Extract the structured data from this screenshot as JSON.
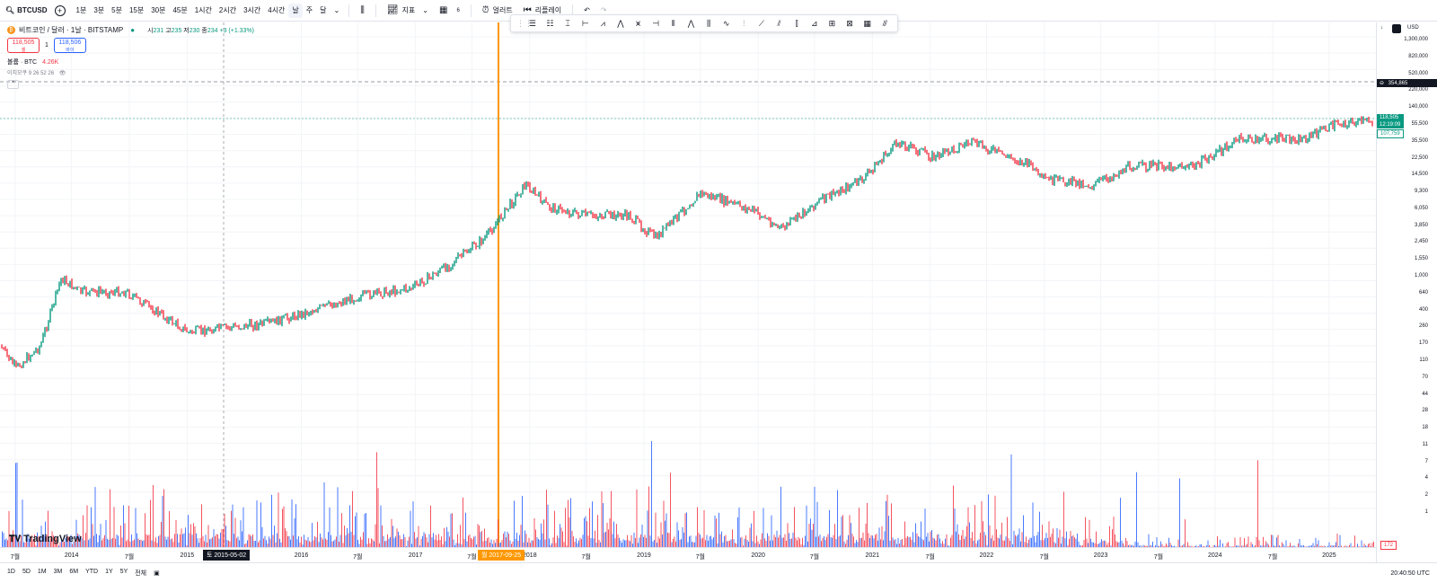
{
  "topbar": {
    "symbol": "BTCUSD",
    "timeframes": [
      "1분",
      "3분",
      "5분",
      "15분",
      "30분",
      "45분",
      "1시간",
      "2시간",
      "3시간",
      "4시간",
      "날",
      "주",
      "달"
    ],
    "active_timeframe": "날",
    "indicators_label": "지표",
    "layout_count": "6",
    "alert_label": "얼러트",
    "replay_label": "리플레이"
  },
  "legend": {
    "title": "비트코인 / 달러 · 1날 · BITSTAMP",
    "open_label": "시",
    "open": "231",
    "high_label": "고",
    "high": "235",
    "low_label": "저",
    "low": "230",
    "close_label": "종",
    "close": "234",
    "change": "+3 (+1.33%)",
    "sell_price": "118,505",
    "sell_label": "셀",
    "spread": "1",
    "buy_price": "118,506",
    "buy_label": "바이",
    "volume_label": "볼륨 · BTC",
    "volume_value": "4.26K",
    "ichimoku_label": "이치모쿠 9 26 52 26"
  },
  "price_axis": {
    "currency": "USD",
    "ticks": [
      "1,300,000",
      "820,000",
      "520,000",
      "220,000",
      "140,000",
      "55,500",
      "35,500",
      "22,500",
      "14,500",
      "9,300",
      "6,050",
      "3,850",
      "2,450",
      "1,550",
      "1,000",
      "640",
      "400",
      "260",
      "170",
      "110",
      "70",
      "44",
      "28",
      "18",
      "11",
      "7",
      "4",
      "2",
      "1"
    ],
    "crosshair_price": "354,865",
    "last_price": "118,505",
    "countdown": "12:19:09",
    "ref_price": "107,759",
    "volume_tag": "172"
  },
  "time_axis": {
    "ticks": [
      {
        "label": "7월",
        "pos": 0.011
      },
      {
        "label": "2014",
        "pos": 0.052
      },
      {
        "label": "7월",
        "pos": 0.094
      },
      {
        "label": "2015",
        "pos": 0.136
      },
      {
        "label": "2016",
        "pos": 0.219
      },
      {
        "label": "7월",
        "pos": 0.26
      },
      {
        "label": "2017",
        "pos": 0.302
      },
      {
        "label": "7월",
        "pos": 0.343
      },
      {
        "label": "2018",
        "pos": 0.385
      },
      {
        "label": "7월",
        "pos": 0.426
      },
      {
        "label": "2019",
        "pos": 0.468
      },
      {
        "label": "7월",
        "pos": 0.509
      },
      {
        "label": "2020",
        "pos": 0.551
      },
      {
        "label": "7월",
        "pos": 0.592
      },
      {
        "label": "2021",
        "pos": 0.634
      },
      {
        "label": "7월",
        "pos": 0.676
      },
      {
        "label": "2022",
        "pos": 0.717
      },
      {
        "label": "7월",
        "pos": 0.759
      },
      {
        "label": "2023",
        "pos": 0.8
      },
      {
        "label": "7월",
        "pos": 0.842
      },
      {
        "label": "2024",
        "pos": 0.883
      },
      {
        "label": "7월",
        "pos": 0.925
      },
      {
        "label": "2025",
        "pos": 0.966
      }
    ],
    "date_label_1": "토 2015-05-02",
    "date_label_2": "월 2017-09-25"
  },
  "bottombar": {
    "ranges": [
      "1D",
      "5D",
      "1M",
      "3M",
      "6M",
      "YTD",
      "1Y",
      "5Y",
      "전체"
    ],
    "time": "20:40:50 UTC"
  },
  "colors": {
    "up": "#089981",
    "down": "#f23645",
    "vol_up": "#2962ff",
    "vol_down": "#f23645",
    "marker": "#ff9800"
  },
  "watermark": "TradingView"
}
